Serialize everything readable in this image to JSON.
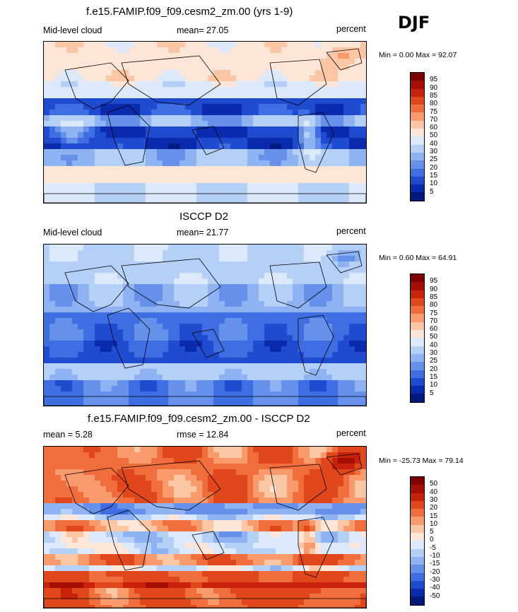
{
  "header": {
    "title": "f.e15.FAMIP.f09_f09.cesm2_zm.00 (yrs 1-9)",
    "season": "DJF"
  },
  "panels": [
    {
      "title": "",
      "left": "Mid-level cloud",
      "center": "mean=  27.05",
      "right": "percent",
      "minmax": "Min =   0.00 Max =  92.07",
      "field": "model",
      "colorbar": {
        "labels": [
          "95",
          "90",
          "85",
          "80",
          "75",
          "70",
          "60",
          "50",
          "40",
          "30",
          "25",
          "20",
          "15",
          "10",
          "5"
        ],
        "colors": [
          "#7f0000",
          "#a50f05",
          "#c8220c",
          "#e0471a",
          "#f06d3c",
          "#f89a6c",
          "#fbc6a4",
          "#fde6d8",
          "#dbe9fb",
          "#b5d0f7",
          "#8fb3f2",
          "#6591ea",
          "#3f6ee2",
          "#1f4bd0",
          "#0a2bae",
          "#001a80"
        ]
      }
    },
    {
      "title": "ISCCP D2",
      "left": "Mid-level cloud",
      "center": "mean=  21.77",
      "right": "percent",
      "minmax": "Min =   0.60 Max =  64.91",
      "field": "obs",
      "colorbar": {
        "labels": [
          "95",
          "90",
          "85",
          "80",
          "75",
          "70",
          "60",
          "50",
          "40",
          "30",
          "25",
          "20",
          "15",
          "10",
          "5"
        ],
        "colors": [
          "#7f0000",
          "#a50f05",
          "#c8220c",
          "#e0471a",
          "#f06d3c",
          "#f89a6c",
          "#fbc6a4",
          "#fde6d8",
          "#dbe9fb",
          "#b5d0f7",
          "#8fb3f2",
          "#6591ea",
          "#3f6ee2",
          "#1f4bd0",
          "#0a2bae",
          "#001a80"
        ]
      }
    },
    {
      "title": "f.e15.FAMIP.f09_f09.cesm2_zm.00 - ISCCP D2",
      "left": "mean =   5.28",
      "center": "rmse =  12.84",
      "right": "percent",
      "minmax": "Min = -25.73 Max =  79.14",
      "field": "diff",
      "colorbar": {
        "labels": [
          "50",
          "40",
          "30",
          "20",
          "15",
          "10",
          "5",
          "0",
          "-5",
          "-10",
          "-15",
          "-20",
          "-30",
          "-40",
          "-50"
        ],
        "colors": [
          "#7f0000",
          "#a50f05",
          "#c8220c",
          "#e0471a",
          "#f06d3c",
          "#f89a6c",
          "#fbc6a4",
          "#fde6d8",
          "#dbe9fb",
          "#b5d0f7",
          "#8fb3f2",
          "#6591ea",
          "#3f6ee2",
          "#1f4bd0",
          "#0a2bae",
          "#001a80"
        ]
      }
    }
  ]
}
